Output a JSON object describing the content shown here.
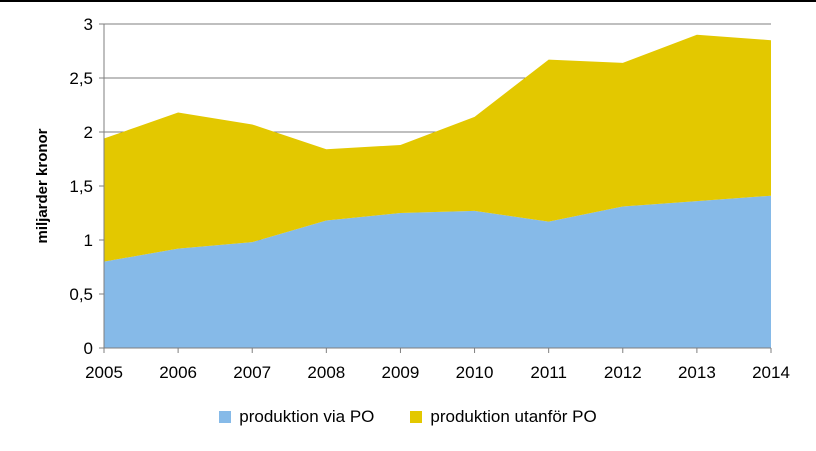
{
  "chart_data": {
    "type": "area",
    "stacked": true,
    "title": "",
    "xlabel": "",
    "ylabel": "miljarder kronor",
    "x": [
      2005,
      2006,
      2007,
      2008,
      2009,
      2010,
      2011,
      2012,
      2013,
      2014
    ],
    "x_tick_labels": [
      "2005",
      "2006",
      "2007",
      "2008",
      "2009",
      "2010",
      "2011",
      "2012",
      "2013",
      "2014"
    ],
    "ylim": [
      0,
      3
    ],
    "y_tick_values": [
      0,
      0.5,
      1,
      1.5,
      2,
      2.5,
      3
    ],
    "y_tick_labels": [
      "0",
      "0,5",
      "1",
      "1,5",
      "2",
      "2,5",
      "3"
    ],
    "grid": "horizontal",
    "legend_position": "bottom",
    "series": [
      {
        "name": "produktion via PO",
        "color": "#86BAE8",
        "values": [
          0.8,
          0.92,
          0.98,
          1.18,
          1.25,
          1.27,
          1.17,
          1.31,
          1.36,
          1.41
        ]
      },
      {
        "name": "produktion utanför PO",
        "color": "#E3C800",
        "values": [
          1.14,
          1.26,
          1.09,
          0.66,
          0.63,
          0.87,
          1.5,
          1.33,
          1.54,
          1.44
        ]
      }
    ]
  }
}
